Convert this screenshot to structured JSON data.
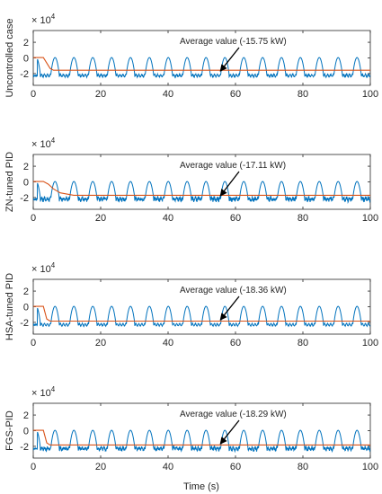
{
  "figure": {
    "xlabel": "Time (s)",
    "exponent_base": "× 10",
    "exponent_power": "4"
  },
  "chart_data": [
    {
      "type": "line",
      "ylabel": "Uncontrolled case",
      "xlim": [
        0,
        100
      ],
      "ylim": [
        -3.5,
        3.5
      ],
      "y_scale_factor": 10000,
      "x_ticks": [
        0,
        20,
        40,
        60,
        80,
        100
      ],
      "y_ticks": [
        -2,
        0,
        2
      ],
      "annotation": "Average value (-15.75 kW)",
      "annotation_target": [
        55,
        -1.9
      ],
      "series": [
        {
          "color": "#0072bd",
          "period": 5.6,
          "peak": 0.05,
          "trough": -2.25,
          "noise": 0.08
        },
        {
          "color": "#d95319",
          "average": -1.575,
          "transient_end": 6
        }
      ]
    },
    {
      "type": "line",
      "ylabel": "ZN-tuned PID",
      "xlim": [
        0,
        100
      ],
      "ylim": [
        -3.5,
        3.5
      ],
      "y_scale_factor": 10000,
      "x_ticks": [
        0,
        20,
        40,
        60,
        80,
        100
      ],
      "y_ticks": [
        -2,
        0,
        2
      ],
      "annotation": "Average value (-17.11 kW)",
      "annotation_target": [
        55,
        -2.0
      ],
      "series": [
        {
          "color": "#0072bd",
          "period": 5.6,
          "peak": 0.05,
          "trough": -2.2,
          "noise": 0.25
        },
        {
          "color": "#d95319",
          "average": -1.711,
          "transient_end": 12
        }
      ]
    },
    {
      "type": "line",
      "ylabel": "HSA-tuned PID",
      "xlim": [
        0,
        100
      ],
      "ylim": [
        -3.5,
        3.5
      ],
      "y_scale_factor": 10000,
      "x_ticks": [
        0,
        20,
        40,
        60,
        80,
        100
      ],
      "y_ticks": [
        -2,
        0,
        2
      ],
      "annotation": "Average value (-18.36 kW)",
      "annotation_target": [
        55,
        -1.9
      ],
      "series": [
        {
          "color": "#0072bd",
          "period": 5.6,
          "peak": 0.05,
          "trough": -2.3,
          "noise": 0.05
        },
        {
          "color": "#d95319",
          "average": -1.836,
          "transient_end": 5
        }
      ]
    },
    {
      "type": "line",
      "ylabel": "FGS-PID",
      "xlim": [
        0,
        100
      ],
      "ylim": [
        -3.5,
        3.5
      ],
      "y_scale_factor": 10000,
      "x_ticks": [
        0,
        20,
        40,
        60,
        80,
        100
      ],
      "y_ticks": [
        -2,
        0,
        2
      ],
      "annotation": "Average value (-18.29 kW)",
      "annotation_target": [
        55,
        -1.9
      ],
      "series": [
        {
          "color": "#0072bd",
          "period": 5.6,
          "peak": 0.05,
          "trough": -2.3,
          "noise": 0.2
        },
        {
          "color": "#d95319",
          "average": -1.829,
          "transient_end": 5
        }
      ]
    }
  ]
}
